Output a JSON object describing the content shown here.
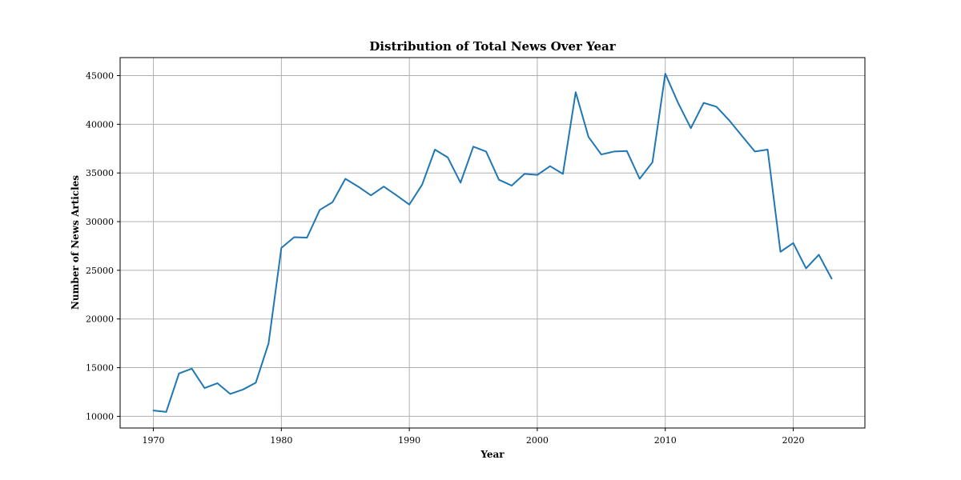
{
  "chart_data": {
    "type": "line",
    "title": "Distribution of Total News Over Year",
    "xlabel": "Year",
    "ylabel": "Number of News Articles",
    "xlim": [
      1967.4,
      1925.6
    ],
    "ylim": [
      8800,
      46850
    ],
    "x_ticks": [
      1970,
      1980,
      1990,
      2000,
      2010,
      2020
    ],
    "y_ticks": [
      10000,
      15000,
      20000,
      25000,
      30000,
      35000,
      40000,
      45000
    ],
    "grid": true,
    "line_color": "#1f77b4",
    "series": [
      {
        "x": [
          1970,
          1971,
          1972,
          1973,
          1974,
          1975,
          1976,
          1977,
          1978,
          1979,
          1980,
          1981,
          1982,
          1983,
          1984,
          1985,
          1986,
          1987,
          1988,
          1989,
          1990,
          1991,
          1992,
          1993,
          1994,
          1995,
          1996,
          1997,
          1998,
          1999,
          2000,
          2001,
          2002,
          2003,
          2004,
          2005,
          2006,
          2007,
          2008,
          2009,
          2010,
          2011,
          2012,
          2013,
          2014,
          2015,
          2016,
          2017,
          2018,
          2019,
          2020,
          2021,
          2022,
          2023
        ],
        "values": [
          10600,
          10450,
          14400,
          14900,
          12900,
          13400,
          12300,
          12750,
          13450,
          17500,
          27300,
          28400,
          28350,
          31200,
          32000,
          34400,
          33600,
          32700,
          33600,
          32700,
          31750,
          33800,
          37400,
          36600,
          34000,
          37700,
          37200,
          34300,
          33700,
          34900,
          34800,
          35700,
          34900,
          43300,
          38700,
          36900,
          37200,
          37250,
          34400,
          36100,
          45200,
          42200,
          39600,
          42200,
          41800,
          40400,
          38800,
          37200,
          37400,
          26900,
          27800,
          25200,
          26600,
          24150
        ]
      }
    ]
  }
}
